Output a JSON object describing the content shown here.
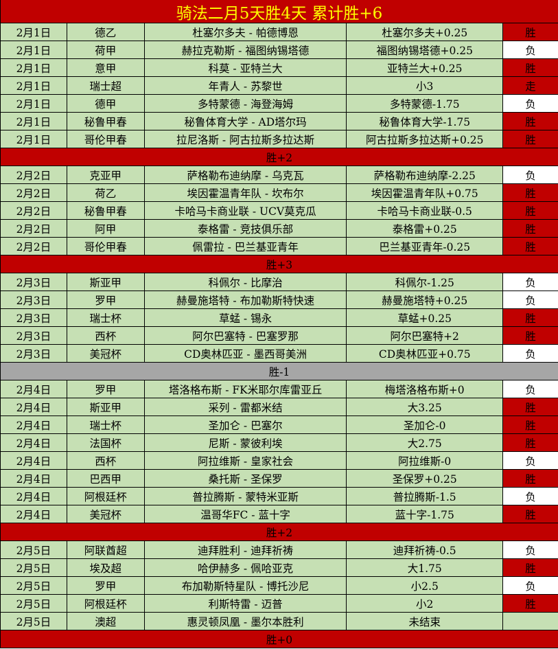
{
  "title": "骑法二月5天胜4天  累计胜+6",
  "colors": {
    "win": "#c00000",
    "loss": "#ffffff",
    "push": "#c00000",
    "row_bg": "#c6e0b4",
    "title_text": "#ffff00",
    "neutral_summary": "#a6a6a6"
  },
  "days": [
    {
      "rows": [
        {
          "date": "2月1日",
          "league": "德乙",
          "match": "杜塞尔多夫 - 帕德博恩",
          "pick": "杜塞尔多夫+0.25",
          "result": "胜",
          "status": "win"
        },
        {
          "date": "2月1日",
          "league": "荷甲",
          "match": "赫拉克勒斯 - 福图纳锡塔德",
          "pick": "福图纳锡塔德+0.25",
          "result": "负",
          "status": "loss"
        },
        {
          "date": "2月1日",
          "league": "意甲",
          "match": "科莫 - 亚特兰大",
          "pick": "亚特兰大+0.25",
          "result": "胜",
          "status": "win"
        },
        {
          "date": "2月1日",
          "league": "瑞士超",
          "match": "年青人 - 苏黎世",
          "pick": "小3",
          "result": "走",
          "status": "push"
        },
        {
          "date": "2月1日",
          "league": "德甲",
          "match": "多特蒙德 - 海登海姆",
          "pick": "多特蒙德-1.75",
          "result": "负",
          "status": "loss"
        },
        {
          "date": "2月1日",
          "league": "秘鲁甲春",
          "match": "秘鲁体育大学 - AD塔尔玛",
          "pick": "秘鲁体育大学-1.75",
          "result": "胜",
          "status": "win"
        },
        {
          "date": "2月1日",
          "league": "哥伦甲春",
          "match": "拉尼洛斯 - 阿古拉斯多拉达斯",
          "pick": "阿古拉斯多拉达斯+0.25",
          "result": "胜",
          "status": "win"
        }
      ],
      "summary": "胜+2",
      "summary_style": "red"
    },
    {
      "rows": [
        {
          "date": "2月2日",
          "league": "克亚甲",
          "match": "萨格勒布迪纳摩 - 乌克瓦",
          "pick": "萨格勒布迪纳摩-2.25",
          "result": "负",
          "status": "loss"
        },
        {
          "date": "2月2日",
          "league": "荷乙",
          "match": "埃因霍温青年队 - 坎布尔",
          "pick": "埃因霍温青年队+0.75",
          "result": "胜",
          "status": "win"
        },
        {
          "date": "2月2日",
          "league": "秘鲁甲春",
          "match": "卡哈马卡商业联 - UCV莫克瓜",
          "pick": "卡哈马卡商业联-0.5",
          "result": "胜",
          "status": "win"
        },
        {
          "date": "2月2日",
          "league": "阿甲",
          "match": "泰格雷 - 竞技俱乐部",
          "pick": "泰格雷+0.25",
          "result": "胜",
          "status": "win"
        },
        {
          "date": "2月2日",
          "league": "哥伦甲春",
          "match": "佩雷拉 - 巴兰基亚青年",
          "pick": "巴兰基亚青年-0.25",
          "result": "胜",
          "status": "win"
        }
      ],
      "summary": "胜+3",
      "summary_style": "red"
    },
    {
      "rows": [
        {
          "date": "2月3日",
          "league": "斯亚甲",
          "match": "科佩尔 - 比摩治",
          "pick": "科佩尔-1.25",
          "result": "负",
          "status": "loss"
        },
        {
          "date": "2月3日",
          "league": "罗甲",
          "match": "赫曼施塔特 - 布加勒斯特快速",
          "pick": "赫曼施塔特+0.25",
          "result": "负",
          "status": "loss"
        },
        {
          "date": "2月3日",
          "league": "瑞士杯",
          "match": "草蜢 - 锡永",
          "pick": "草蜢+0.25",
          "result": "胜",
          "status": "win"
        },
        {
          "date": "2月3日",
          "league": "西杯",
          "match": "阿尔巴塞特 - 巴塞罗那",
          "pick": "阿尔巴塞特+2",
          "result": "胜",
          "status": "win"
        },
        {
          "date": "2月3日",
          "league": "美冠杯",
          "match": "CD奥林匹亚 - 墨西哥美洲",
          "pick": "CD奥林匹亚+0.75",
          "result": "负",
          "status": "loss"
        }
      ],
      "summary": "胜-1",
      "summary_style": "gray"
    },
    {
      "rows": [
        {
          "date": "2月4日",
          "league": "罗甲",
          "match": "塔洛格布斯 - FK米耶尔库雷亚丘",
          "pick": "梅塔洛格布斯+0",
          "result": "负",
          "status": "loss"
        },
        {
          "date": "2月4日",
          "league": "斯亚甲",
          "match": "采列 - 雷都米结",
          "pick": "大3.25",
          "result": "胜",
          "status": "win"
        },
        {
          "date": "2月4日",
          "league": "瑞士杯",
          "match": "圣加仑 - 巴塞尔",
          "pick": "圣加仑-0",
          "result": "胜",
          "status": "win"
        },
        {
          "date": "2月4日",
          "league": "法国杯",
          "match": "尼斯 - 蒙彼利埃",
          "pick": "大2.75",
          "result": "胜",
          "status": "win"
        },
        {
          "date": "2月4日",
          "league": "西杯",
          "match": "阿拉维斯 - 皇家社会",
          "pick": "阿拉维斯-0",
          "result": "负",
          "status": "loss"
        },
        {
          "date": "2月4日",
          "league": "巴西甲",
          "match": "桑托斯 - 圣保罗",
          "pick": "圣保罗+0.25",
          "result": "胜",
          "status": "win"
        },
        {
          "date": "2月4日",
          "league": "阿根廷杯",
          "match": "普拉腾斯 - 蒙特米亚斯",
          "pick": "普拉腾斯-1.5",
          "result": "负",
          "status": "loss"
        },
        {
          "date": "2月4日",
          "league": "美冠杯",
          "match": "温哥华FC - 蓝十字",
          "pick": "蓝十字-1.75",
          "result": "胜",
          "status": "win"
        }
      ],
      "summary": "胜+2",
      "summary_style": "red"
    },
    {
      "rows": [
        {
          "date": "2月5日",
          "league": "阿联酋超",
          "match": "迪拜胜利 - 迪拜祈祷",
          "pick": "迪拜祈祷-0.5",
          "result": "负",
          "status": "loss"
        },
        {
          "date": "2月5日",
          "league": "埃及超",
          "match": "哈伊赫多 - 佩哈亚克",
          "pick": "大1.75",
          "result": "胜",
          "status": "win"
        },
        {
          "date": "2月5日",
          "league": "罗甲",
          "match": "布加勒斯特星队 - 博托沙尼",
          "pick": "小2.5",
          "result": "负",
          "status": "loss"
        },
        {
          "date": "2月5日",
          "league": "阿根廷杯",
          "match": "利斯特雷 - 迈普",
          "pick": "小2",
          "result": "胜",
          "status": "win"
        },
        {
          "date": "2月5日",
          "league": "澳超",
          "match": "惠灵顿凤凰 - 墨尔本胜利",
          "pick": "未结束",
          "result": "",
          "status": "none"
        }
      ],
      "summary": "胜+0",
      "summary_style": "red"
    }
  ]
}
